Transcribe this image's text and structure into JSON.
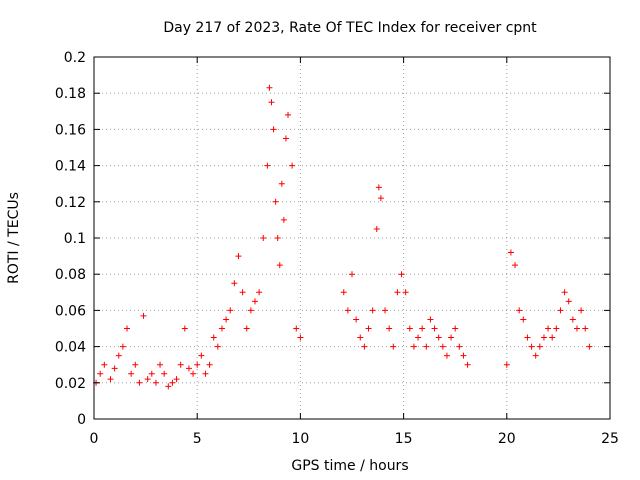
{
  "chart_data": {
    "type": "scatter",
    "title": "Day 217 of 2023, Rate Of TEC Index for receiver cpnt",
    "xlabel": "GPS time / hours",
    "ylabel": "ROTI / TECUs",
    "xlim": [
      0,
      25
    ],
    "ylim": [
      0,
      0.2
    ],
    "x_ticks": [
      "0",
      "5",
      "10",
      "15",
      "20",
      "25"
    ],
    "y_ticks": [
      "0",
      "0.02",
      "0.04",
      "0.06",
      "0.08",
      "0.1",
      "0.12",
      "0.14",
      "0.16",
      "0.18",
      "0.2"
    ],
    "grid": true,
    "marker": "+",
    "color": "#ff0000",
    "series": [
      {
        "x": [
          0.1,
          0.3,
          0.5,
          0.8,
          1.0,
          1.2,
          1.4,
          1.6,
          1.8,
          2.0,
          2.2,
          2.4,
          2.6,
          2.8,
          3.0,
          3.2,
          3.4,
          3.6,
          3.8,
          4.0,
          4.2,
          4.4,
          4.6,
          4.8,
          5.0,
          5.2,
          5.4,
          5.6,
          5.8,
          6.0,
          6.2,
          6.4,
          6.6,
          6.8,
          7.0,
          7.2,
          7.4,
          7.6,
          7.8,
          8.0,
          8.2,
          8.4,
          8.5,
          8.6,
          8.7,
          8.8,
          8.9,
          9.0,
          9.1,
          9.2,
          9.3,
          9.4,
          9.6,
          9.8,
          10.0,
          12.1,
          12.3,
          12.5,
          12.7,
          12.9,
          13.1,
          13.3,
          13.5,
          13.7,
          13.8,
          13.9,
          14.1,
          14.3,
          14.5,
          14.7,
          14.9,
          15.1,
          15.3,
          15.5,
          15.7,
          15.9,
          16.1,
          16.3,
          16.5,
          16.7,
          16.9,
          17.1,
          17.3,
          17.5,
          17.7,
          17.9,
          18.1,
          20.0,
          20.2,
          20.4,
          20.6,
          20.8,
          21.0,
          21.2,
          21.4,
          21.6,
          21.8,
          22.0,
          22.2,
          22.4,
          22.6,
          22.8,
          23.0,
          23.2,
          23.4,
          23.6,
          23.8,
          24.0
        ],
        "y": [
          0.02,
          0.025,
          0.03,
          0.022,
          0.028,
          0.035,
          0.04,
          0.05,
          0.025,
          0.03,
          0.02,
          0.057,
          0.022,
          0.025,
          0.02,
          0.03,
          0.025,
          0.018,
          0.02,
          0.022,
          0.03,
          0.05,
          0.028,
          0.025,
          0.03,
          0.035,
          0.025,
          0.03,
          0.045,
          0.04,
          0.05,
          0.055,
          0.06,
          0.075,
          0.09,
          0.07,
          0.05,
          0.06,
          0.065,
          0.07,
          0.1,
          0.14,
          0.183,
          0.175,
          0.16,
          0.12,
          0.1,
          0.085,
          0.13,
          0.11,
          0.155,
          0.168,
          0.14,
          0.05,
          0.045,
          0.07,
          0.06,
          0.08,
          0.055,
          0.045,
          0.04,
          0.05,
          0.06,
          0.105,
          0.128,
          0.122,
          0.06,
          0.05,
          0.04,
          0.07,
          0.08,
          0.07,
          0.05,
          0.04,
          0.045,
          0.05,
          0.04,
          0.055,
          0.05,
          0.045,
          0.04,
          0.035,
          0.045,
          0.05,
          0.04,
          0.035,
          0.03,
          0.03,
          0.092,
          0.085,
          0.06,
          0.055,
          0.045,
          0.04,
          0.035,
          0.04,
          0.045,
          0.05,
          0.045,
          0.05,
          0.06,
          0.07,
          0.065,
          0.055,
          0.05,
          0.06,
          0.05,
          0.04
        ]
      }
    ]
  }
}
